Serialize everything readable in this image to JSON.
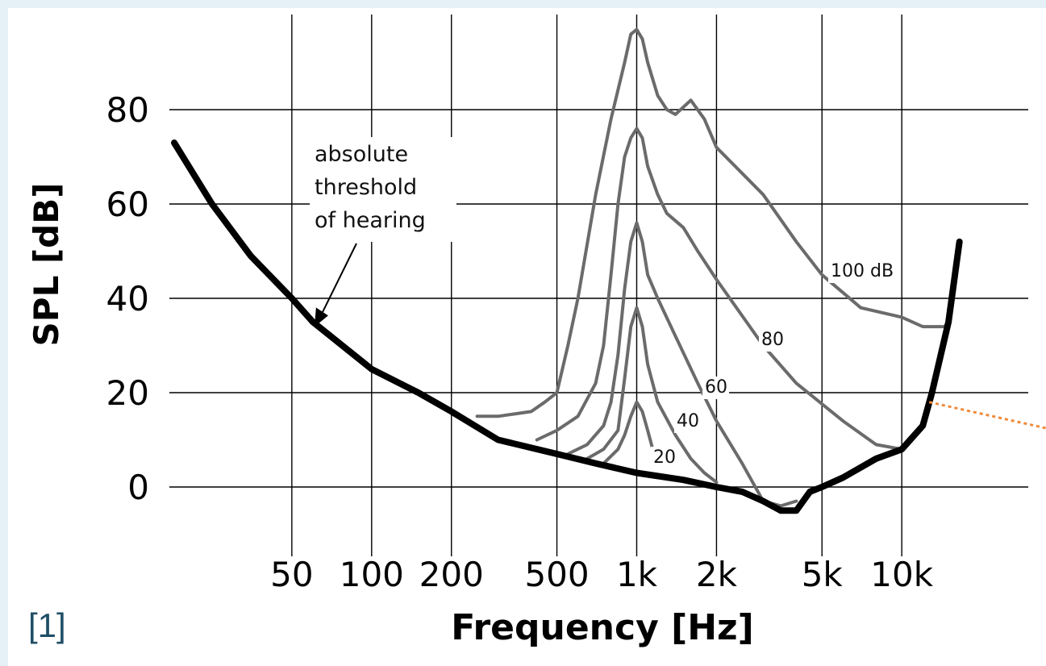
{
  "chart_data": {
    "type": "line",
    "title": "",
    "xlabel": "Frequency [Hz]",
    "ylabel": "SPL [dB]",
    "xscale": "log",
    "xlim": [
      15,
      30000
    ],
    "ylim": [
      -5,
      98
    ],
    "xticks": [
      {
        "value": 50,
        "label": "50"
      },
      {
        "value": 100,
        "label": "100"
      },
      {
        "value": 200,
        "label": "200"
      },
      {
        "value": 500,
        "label": "500"
      },
      {
        "value": 1000,
        "label": "1k"
      },
      {
        "value": 2000,
        "label": "2k"
      },
      {
        "value": 5000,
        "label": "5k"
      },
      {
        "value": 10000,
        "label": "10k"
      }
    ],
    "yticks": [
      0,
      20,
      40,
      60,
      80
    ],
    "grid": true,
    "threshold": {
      "color": "#000000",
      "x": [
        18,
        25,
        35,
        50,
        60,
        100,
        150,
        200,
        300,
        500,
        700,
        1000,
        1500,
        2000,
        2500,
        3000,
        3500,
        4000,
        4500,
        5000,
        6000,
        8000,
        10000,
        12000,
        13000,
        15000,
        16500
      ],
      "y": [
        73,
        60,
        49,
        40,
        35,
        25,
        20,
        16,
        10,
        7,
        5,
        3,
        1.5,
        0,
        -1,
        -3,
        -5,
        -5,
        -1,
        0,
        2,
        6,
        8,
        13,
        20,
        35,
        52
      ]
    },
    "masking_series": [
      {
        "name": "100 dB",
        "color": "#6b6b6b",
        "x": [
          250,
          300,
          400,
          450,
          500,
          550,
          600,
          700,
          800,
          900,
          950,
          1000,
          1050,
          1100,
          1200,
          1300,
          1400,
          1600,
          1800,
          2000,
          3000,
          4000,
          5000,
          7000,
          10000,
          12000,
          14500,
          15000
        ],
        "y": [
          15,
          15,
          16,
          18,
          20,
          30,
          40,
          62,
          78,
          90,
          96,
          97,
          95,
          90,
          83,
          80,
          79,
          82,
          78,
          72,
          62,
          52,
          45,
          38,
          36,
          34,
          34,
          35
        ]
      },
      {
        "name": "80",
        "color": "#6b6b6b",
        "x": [
          420,
          500,
          600,
          700,
          750,
          800,
          850,
          900,
          950,
          1000,
          1050,
          1100,
          1200,
          1300,
          1500,
          1700,
          2000,
          3000,
          4000,
          6000,
          8000,
          10000
        ],
        "y": [
          10,
          12,
          15,
          22,
          30,
          45,
          60,
          70,
          74,
          76,
          74,
          68,
          62,
          58,
          55,
          50,
          44,
          30,
          22,
          14,
          9,
          8
        ]
      },
      {
        "name": "60",
        "color": "#6b6b6b",
        "x": [
          550,
          650,
          750,
          800,
          850,
          900,
          950,
          1000,
          1050,
          1100,
          1200,
          1400,
          1700,
          2000,
          2500,
          3000,
          3500,
          4000
        ],
        "y": [
          7,
          9,
          13,
          18,
          28,
          42,
          52,
          56,
          52,
          45,
          40,
          32,
          22,
          14,
          5,
          -3,
          -4,
          -3
        ]
      },
      {
        "name": "40",
        "color": "#6b6b6b",
        "x": [
          650,
          750,
          850,
          900,
          950,
          1000,
          1050,
          1100,
          1200,
          1400,
          1600,
          1800,
          2000
        ],
        "y": [
          6,
          8,
          12,
          23,
          34,
          38,
          34,
          26,
          18,
          11,
          6,
          3,
          1
        ]
      },
      {
        "name": "20",
        "color": "#6b6b6b",
        "x": [
          750,
          850,
          900,
          950,
          1000,
          1050,
          1100,
          1150,
          1200
        ],
        "y": [
          5,
          8,
          11,
          15,
          18,
          16,
          12,
          8,
          6
        ]
      }
    ],
    "curve_labels": [
      "100 dB",
      "80",
      "60",
      "40",
      "20"
    ],
    "annotation": {
      "lines": [
        "absolute",
        "threshold",
        "of hearing"
      ],
      "arrow_target": {
        "x": 60,
        "y": 36
      }
    },
    "extra_line_color": "#f08a3a"
  },
  "reference_label": "[1]"
}
